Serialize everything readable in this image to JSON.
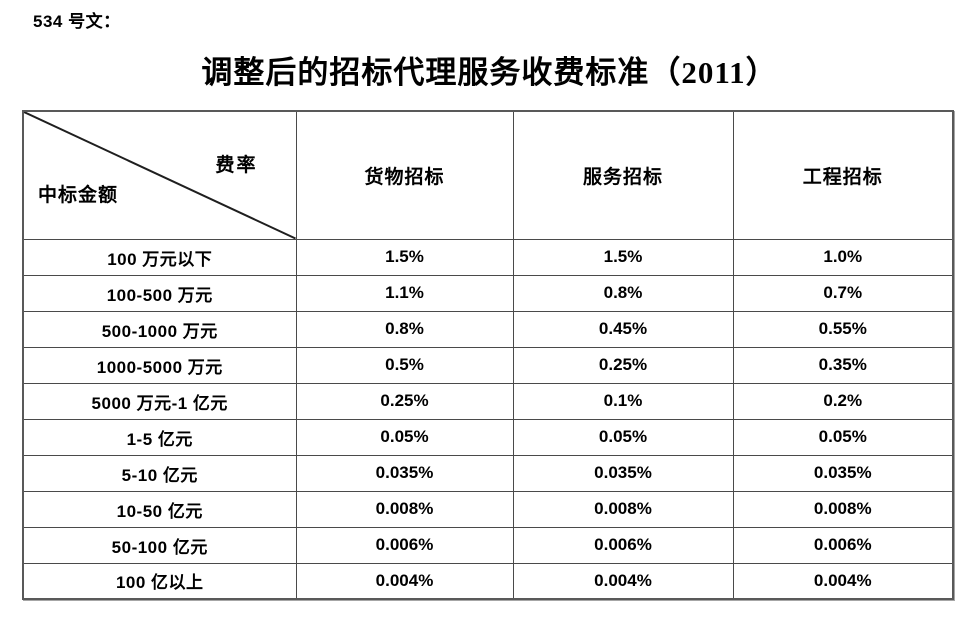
{
  "page": {
    "doc_label": "534 号文：",
    "title": "调整后的招标代理服务收费标准（2011）"
  },
  "table": {
    "corner": {
      "top_right": "费率",
      "bottom_left": "中标金额"
    },
    "columns": [
      "货物招标",
      "服务招标",
      "工程招标"
    ],
    "rows": [
      {
        "amount": "100 万元以下",
        "goods": "1.5%",
        "service": "1.5%",
        "engineering": "1.0%"
      },
      {
        "amount": "100-500 万元",
        "goods": "1.1%",
        "service": "0.8%",
        "engineering": "0.7%"
      },
      {
        "amount": "500-1000 万元",
        "goods": "0.8%",
        "service": "0.45%",
        "engineering": "0.55%"
      },
      {
        "amount": "1000-5000 万元",
        "goods": "0.5%",
        "service": "0.25%",
        "engineering": "0.35%"
      },
      {
        "amount": "5000 万元-1 亿元",
        "goods": "0.25%",
        "service": "0.1%",
        "engineering": "0.2%"
      },
      {
        "amount": "1-5 亿元",
        "goods": "0.05%",
        "service": "0.05%",
        "engineering": "0.05%"
      },
      {
        "amount": "5-10 亿元",
        "goods": "0.035%",
        "service": "0.035%",
        "engineering": "0.035%"
      },
      {
        "amount": "10-50 亿元",
        "goods": "0.008%",
        "service": "0.008%",
        "engineering": "0.008%"
      },
      {
        "amount": "50-100 亿元",
        "goods": "0.006%",
        "service": "0.006%",
        "engineering": "0.006%"
      },
      {
        "amount": "100 亿以上",
        "goods": "0.004%",
        "service": "0.004%",
        "engineering": "0.004%"
      }
    ]
  },
  "colors": {
    "text": "#000000",
    "background": "#ffffff",
    "border": "#4a4a4a",
    "outer_border": "#595959",
    "diagonal_line": "#1f1f1f"
  }
}
